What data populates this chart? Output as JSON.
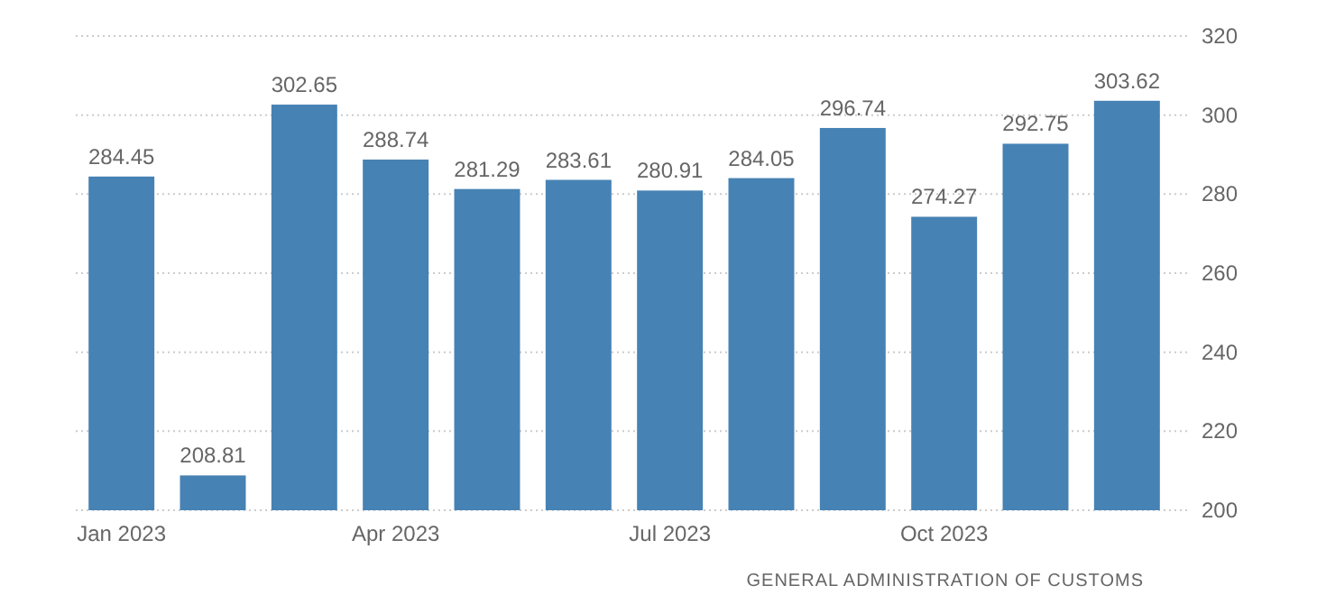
{
  "chart_data": {
    "type": "bar",
    "categories": [
      "Jan 2023",
      null,
      null,
      "Apr 2023",
      null,
      null,
      "Jul 2023",
      null,
      null,
      "Oct 2023",
      null,
      null
    ],
    "values": [
      284.45,
      208.81,
      302.65,
      288.74,
      281.29,
      283.61,
      280.91,
      284.05,
      296.74,
      274.27,
      292.75,
      303.62
    ],
    "color": "#4682b4",
    "data_labels": true,
    "ylim": [
      200,
      320
    ],
    "yticks": [
      200,
      220,
      240,
      260,
      280,
      300,
      320
    ],
    "grid": "y",
    "annotations": [
      "GENERAL ADMINISTRATION OF CUSTOMS"
    ]
  }
}
